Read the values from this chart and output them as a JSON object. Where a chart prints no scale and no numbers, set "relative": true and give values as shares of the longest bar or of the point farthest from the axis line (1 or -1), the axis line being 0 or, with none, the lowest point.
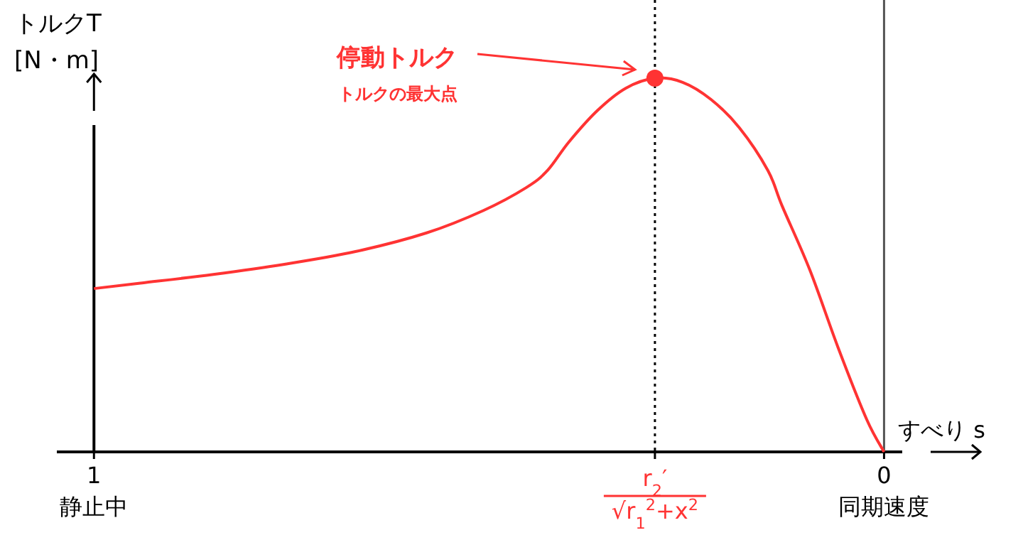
{
  "chart_data": {
    "type": "line",
    "relative": true,
    "xlabel": "すべり s",
    "ylabel": "トルクT\n[N・m]",
    "xlim": [
      1.047,
      -0.023
    ],
    "xticks": [
      {
        "value": 1,
        "label": "1\n静止中"
      },
      {
        "value": 0.29,
        "label": "r$_{2}$′\n√r$_{1}$$^{2}$+x$^{2}$"
      },
      {
        "value": 0,
        "label": "0\n同期速度"
      }
    ],
    "marker": "none",
    "line_style": "solid",
    "series": [
      {
        "color": "#ff3333",
        "x": [
          1,
          0.939,
          0.849,
          0.759,
          0.669,
          0.579,
          0.507,
          0.453,
          0.426,
          0.399,
          0.363,
          0.327,
          0.29,
          0.255,
          0.219,
          0.183,
          0.147,
          0.129,
          0.094,
          0.058,
          0.022,
          0
        ],
        "values": [
          0.437,
          0.452,
          0.475,
          0.502,
          0.536,
          0.586,
          0.646,
          0.707,
          0.753,
          0.829,
          0.913,
          0.973,
          1,
          0.989,
          0.943,
          0.867,
          0.753,
          0.658,
          0.487,
          0.278,
          0.087,
          0
        ]
      },
      {
        "type": "scatter",
        "marker": "circle",
        "color": "#ff3333",
        "x": [
          0.29
        ],
        "values": [
          1
        ]
      }
    ],
    "ref_lines": [
      {
        "axis": "x",
        "value": 1,
        "color": "#000000",
        "line_style": "solid"
      },
      {
        "axis": "x",
        "value": 0.29,
        "color": "#000000",
        "line_style": "dotted"
      },
      {
        "axis": "x",
        "value": 0,
        "color": "#555555",
        "line_style": "solid"
      }
    ],
    "annotations": [
      "停動トルク",
      "トルクの最大点"
    ]
  }
}
